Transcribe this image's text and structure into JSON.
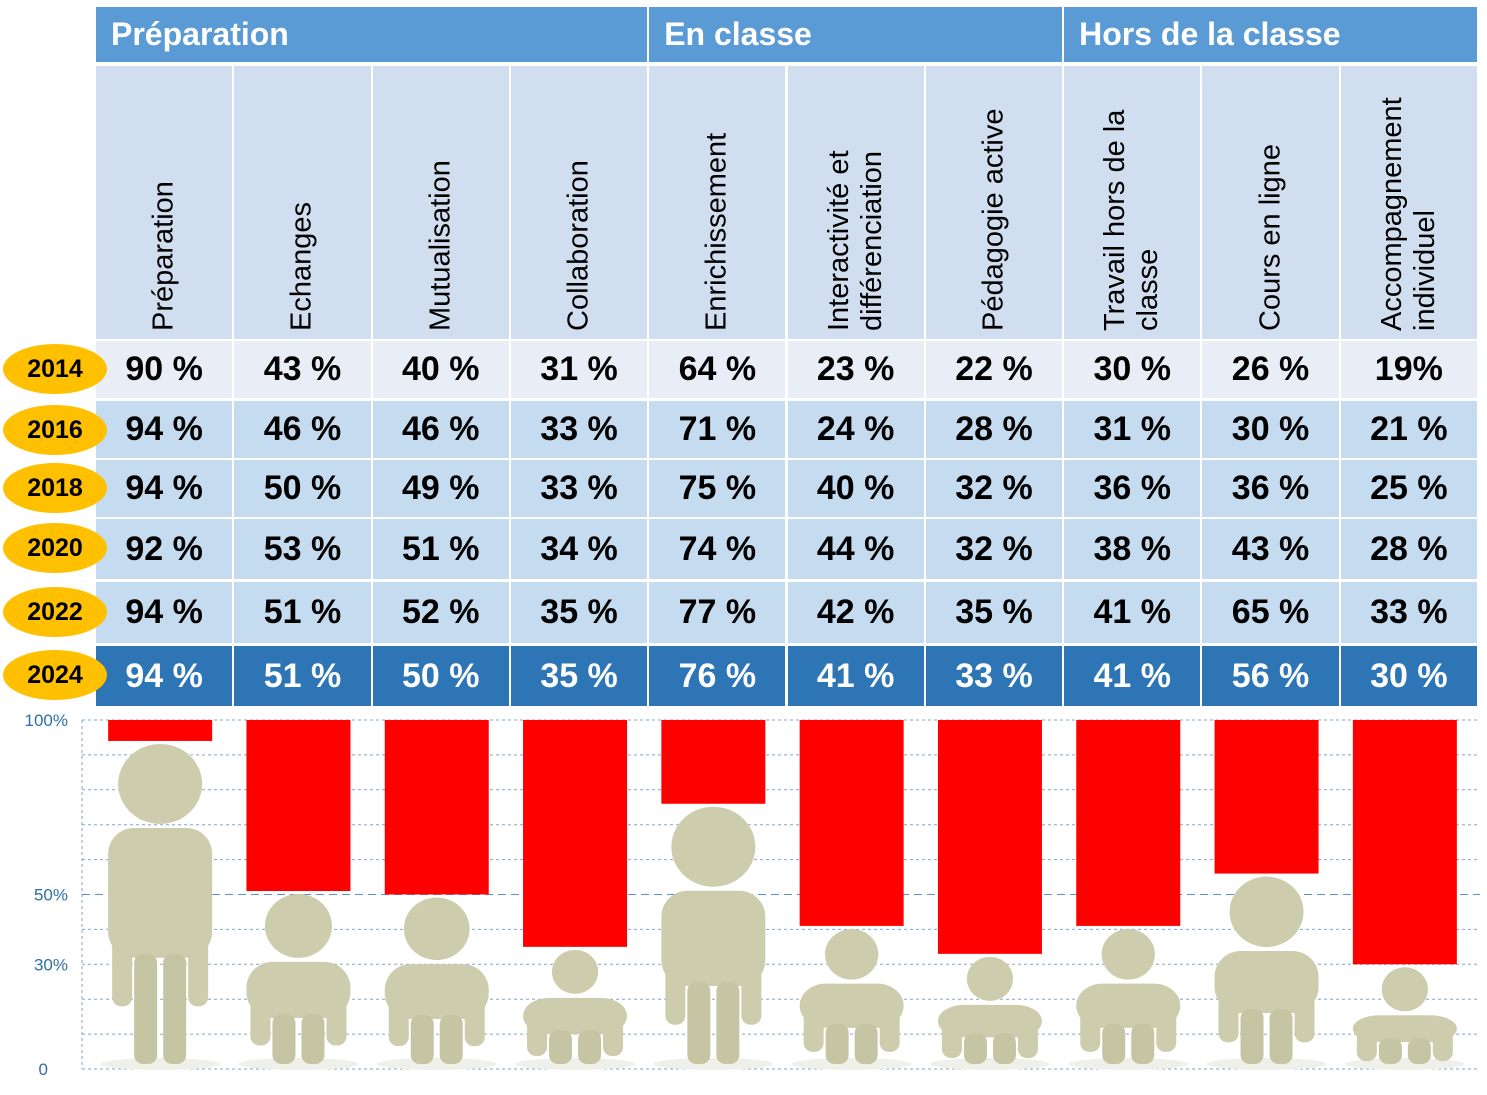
{
  "groups": [
    "Préparation",
    "En classe",
    "Hors de la classe"
  ],
  "columns": [
    [
      "Préparation"
    ],
    [
      "Echanges"
    ],
    [
      "Mutualisation"
    ],
    [
      "Collaboration"
    ],
    [
      "Enrichissement"
    ],
    [
      "Interactivité et",
      "différenciation"
    ],
    [
      "Pédagogie active"
    ],
    [
      "Travail hors de la",
      "classe"
    ],
    [
      "Cours en ligne"
    ],
    [
      "Accompagnement",
      "individuel"
    ]
  ],
  "rows": [
    {
      "year": "2014",
      "values": [
        "90 %",
        "43 %",
        "40 %",
        "31 %",
        "64 %",
        "23 %",
        "22 %",
        "30 %",
        "26 %",
        "19%"
      ]
    },
    {
      "year": "2016",
      "values": [
        "94 %",
        "46 %",
        "46 %",
        "33 %",
        "71 %",
        "24 %",
        "28 %",
        "31 %",
        "30 %",
        "21 %"
      ]
    },
    {
      "year": "2018",
      "values": [
        "94 %",
        "50 %",
        "49 %",
        "33 %",
        "75 %",
        "40 %",
        "32 %",
        "36 %",
        "36 %",
        "25 %"
      ]
    },
    {
      "year": "2020",
      "values": [
        "92 %",
        "53 %",
        "51 %",
        "34 %",
        "74 %",
        "44 %",
        "32 %",
        "38 %",
        "43 %",
        "28 %"
      ]
    },
    {
      "year": "2022",
      "values": [
        "94 %",
        "51 %",
        "52 %",
        "35 %",
        "77 %",
        "42 %",
        "35 %",
        "41 %",
        "65 %",
        "33 %"
      ]
    },
    {
      "year": "2024",
      "values": [
        "94 %",
        "51 %",
        "50 %",
        "35 %",
        "76 %",
        "41 %",
        "33 %",
        "41 %",
        "56 %",
        "30 %"
      ]
    }
  ],
  "colors": {
    "group_header": "#5b9bd5",
    "column_header": "#d0deef",
    "row_2014": "#e9edf6",
    "row_light": "#c5dbef",
    "row_2024": "#2e75b6",
    "year_badge": "#ffc000",
    "bar": "#ff0000",
    "figure": "#cdcdae"
  },
  "chart_data": {
    "type": "bar",
    "orientation": "hanging from 100%",
    "categories": [
      "Préparation",
      "Echanges",
      "Mutualisation",
      "Collaboration",
      "Enrichissement",
      "Interactivité et différenciation",
      "Pédagogie active",
      "Travail hors de la classe",
      "Cours en ligne",
      "Accompagnement individuel"
    ],
    "values": [
      94,
      51,
      50,
      35,
      76,
      41,
      33,
      41,
      56,
      30
    ],
    "y_ticks": [
      "100%",
      "50%",
      "30%",
      "0"
    ],
    "y_tick_values": [
      100,
      50,
      30,
      0
    ],
    "ylim": [
      0,
      100
    ],
    "grid": true,
    "icon": "person-figure-icon"
  }
}
